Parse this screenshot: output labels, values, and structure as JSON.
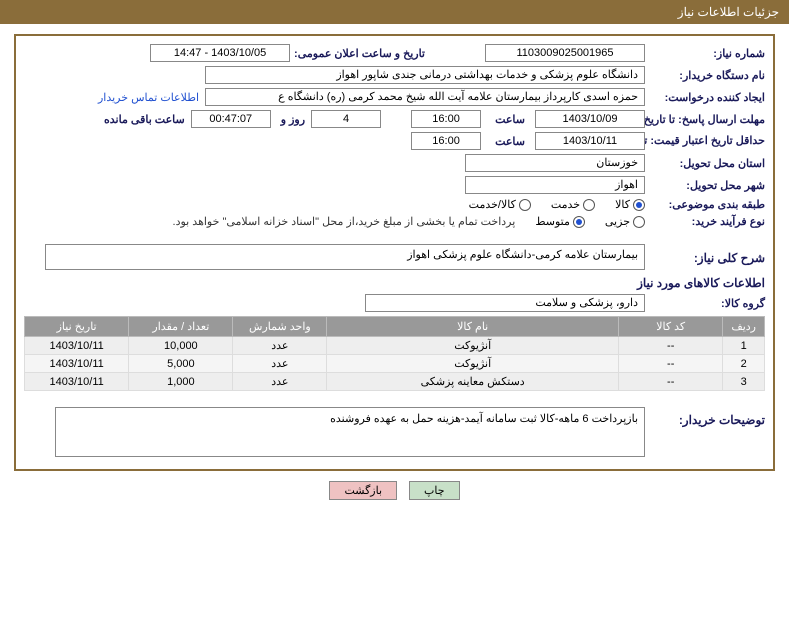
{
  "header": {
    "title": "جزئیات اطلاعات نیاز"
  },
  "need_number": {
    "label": "شماره نیاز:",
    "value": "1103009025001965"
  },
  "announce": {
    "label": "تاریخ و ساعت اعلان عمومی:",
    "datetime": "1403/10/05 - 14:47"
  },
  "buyer_org": {
    "label": "نام دستگاه خریدار:",
    "value": "دانشگاه علوم پزشکی و خدمات بهداشتی درمانی جندی شاپور اهواز"
  },
  "requester": {
    "label": "ایجاد کننده درخواست:",
    "value": "حمزه اسدی کارپرداز بیمارستان علامه آیت الله شیخ محمد کرمی (ره) دانشگاه ع",
    "link": "اطلاعات تماس خریدار"
  },
  "deadline": {
    "label": "مهلت ارسال پاسخ: تا تاریخ:",
    "date": "1403/10/09",
    "time_label": "ساعت",
    "time": "16:00",
    "days": "4",
    "days_suffix": "روز و",
    "countdown": "00:47:07",
    "remain_suffix": "ساعت باقی مانده"
  },
  "validity": {
    "label": "حداقل تاریخ اعتبار قیمت: تا تاریخ:",
    "date": "1403/10/11",
    "time_label": "ساعت",
    "time": "16:00"
  },
  "province": {
    "label": "استان محل تحویل:",
    "value": "خوزستان"
  },
  "city": {
    "label": "شهر محل تحویل:",
    "value": "اهواز"
  },
  "classification": {
    "label": "طبقه بندی موضوعی:",
    "option1": "کالا",
    "option2": "خدمت",
    "option3": "کالا/خدمت",
    "selected": 1
  },
  "purchase_type": {
    "label": "نوع فرآیند خرید:",
    "option1": "جزیی",
    "option2": "متوسط",
    "note": "پرداخت تمام یا بخشی از مبلغ خرید،از محل \"اسناد خزانه اسلامی\" خواهد بود.",
    "selected": 2
  },
  "summary": {
    "label": "شرح کلی نیاز:",
    "value": "بیمارستان علامه کرمی-دانشگاه علوم پزشکی اهواز"
  },
  "items_section_title": "اطلاعات کالاهای مورد نیاز",
  "item_group": {
    "label": "گروه کالا:",
    "value": "دارو، پزشکی و سلامت"
  },
  "table": {
    "headers": {
      "row": "ردیف",
      "code": "کد کالا",
      "name": "نام کالا",
      "unit": "واحد شمارش",
      "qty": "تعداد / مقدار",
      "date": "تاریخ نیاز"
    },
    "rows": [
      {
        "row": "1",
        "code": "--",
        "name": "آنژیوکت",
        "unit": "عدد",
        "qty": "10,000",
        "date": "1403/10/11"
      },
      {
        "row": "2",
        "code": "--",
        "name": "آنژیوکت",
        "unit": "عدد",
        "qty": "5,000",
        "date": "1403/10/11"
      },
      {
        "row": "3",
        "code": "--",
        "name": "دستکش معاینه پزشکی",
        "unit": "عدد",
        "qty": "1,000",
        "date": "1403/10/11"
      }
    ]
  },
  "buyer_notes": {
    "label": "توضیحات خریدار:",
    "value": "بازپرداخت 6 ماهه-کالا ثبت سامانه آیمد-هزینه حمل به عهده فروشنده"
  },
  "buttons": {
    "print": "چاپ",
    "back": "بازگشت"
  },
  "colors": {
    "header_bg": "#8a6d3a",
    "label_color": "#1a1a5a",
    "th_bg": "#999999"
  },
  "col_widths": {
    "row": "40px",
    "code": "100px",
    "name": "280px",
    "unit": "90px",
    "qty": "100px",
    "date": "100px"
  }
}
